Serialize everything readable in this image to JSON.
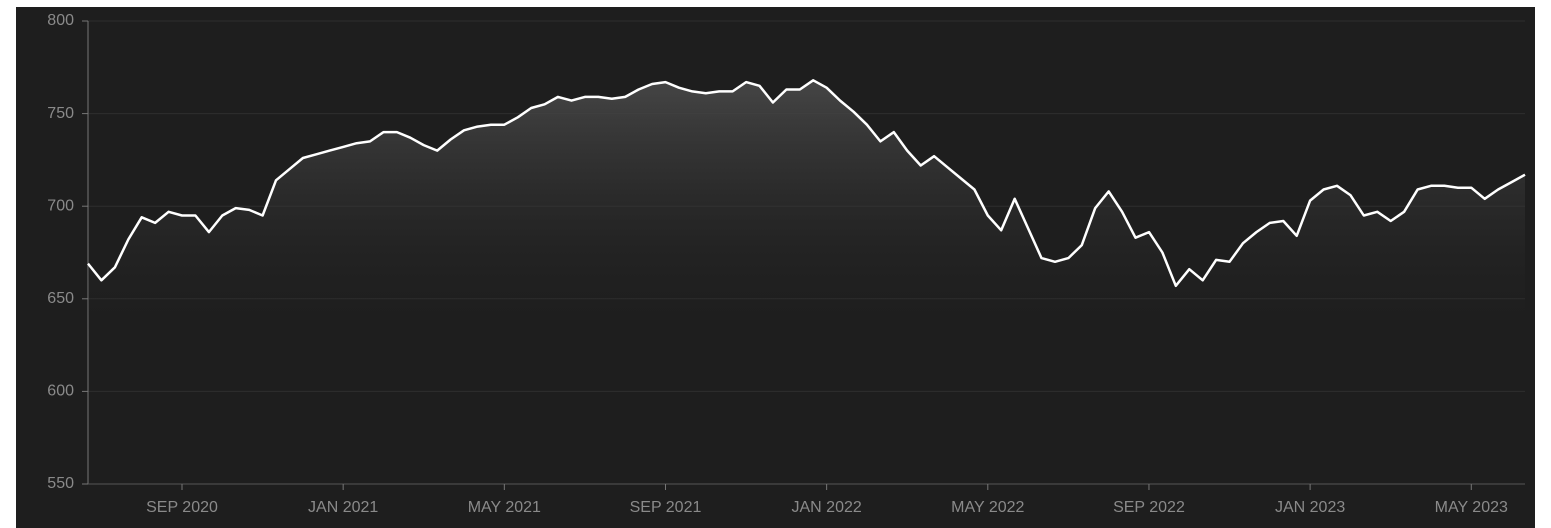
{
  "chart_data": {
    "type": "line",
    "categories": [
      null,
      null,
      null,
      null,
      null,
      null,
      null,
      "SEP 2020",
      null,
      null,
      null,
      null,
      null,
      null,
      null,
      null,
      null,
      null,
      null,
      "JAN 2021",
      null,
      null,
      null,
      null,
      null,
      null,
      null,
      null,
      null,
      null,
      null,
      "MAY 2021",
      null,
      null,
      null,
      null,
      null,
      null,
      null,
      null,
      null,
      null,
      null,
      "SEP 2021",
      null,
      null,
      null,
      null,
      null,
      null,
      null,
      null,
      null,
      null,
      null,
      "JAN 2022",
      null,
      null,
      null,
      null,
      null,
      null,
      null,
      null,
      null,
      null,
      null,
      "MAY 2022",
      null,
      null,
      null,
      null,
      null,
      null,
      null,
      null,
      null,
      null,
      null,
      "SEP 2022",
      null,
      null,
      null,
      null,
      null,
      null,
      null,
      null,
      null,
      null,
      null,
      "JAN 2023",
      null,
      null,
      null,
      null,
      null,
      null,
      null,
      null,
      null,
      null,
      null,
      "MAY 2023",
      null,
      null,
      null,
      null
    ],
    "values": [
      669,
      660,
      667,
      682,
      694,
      691,
      697,
      695,
      695,
      686,
      695,
      699,
      698,
      695,
      714,
      720,
      726,
      728,
      730,
      732,
      734,
      735,
      740,
      740,
      737,
      733,
      730,
      736,
      741,
      743,
      744,
      744,
      748,
      753,
      755,
      759,
      757,
      759,
      759,
      758,
      759,
      763,
      766,
      767,
      764,
      762,
      761,
      762,
      762,
      767,
      765,
      756,
      763,
      763,
      768,
      764,
      757,
      751,
      744,
      735,
      740,
      730,
      722,
      727,
      721,
      715,
      709,
      695,
      687,
      704,
      688,
      672,
      670,
      672,
      679,
      699,
      708,
      697,
      683,
      686,
      675,
      657,
      666,
      660,
      671,
      670,
      680,
      686,
      691,
      692,
      684,
      703,
      709,
      711,
      706,
      695,
      697,
      692,
      697,
      709,
      711,
      711,
      710,
      710,
      704,
      709,
      713,
      717
    ],
    "color": "#ffffff",
    "ylim": [
      550,
      800
    ],
    "yticks": [
      550,
      600,
      650,
      700,
      750,
      800
    ],
    "grid": true
  }
}
